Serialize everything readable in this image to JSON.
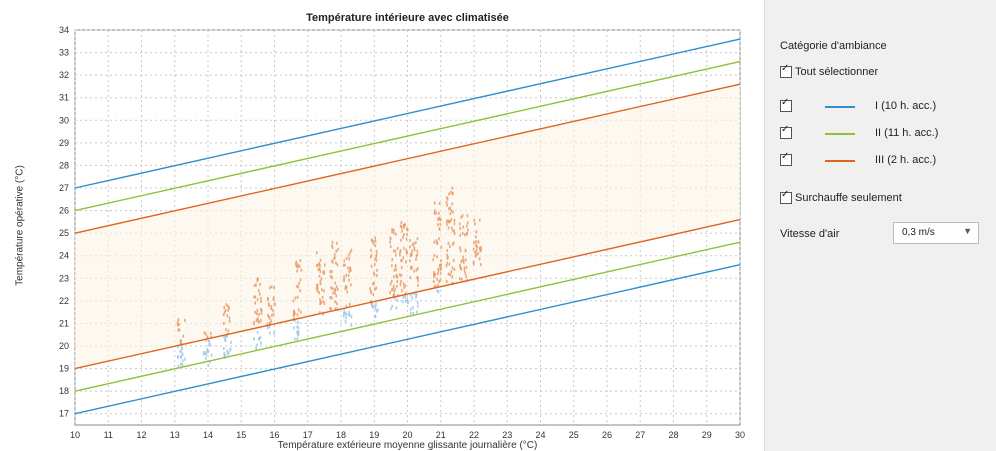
{
  "chart_data": {
    "type": "scatter",
    "title": "Température intérieure avec climatisée",
    "xlabel": "Température extérieure moyenne glissante journalière (°C)",
    "ylabel": "Température opérative (°C)",
    "xlim": [
      10,
      30
    ],
    "ylim": [
      16.5,
      34
    ],
    "x_ticks": [
      "10",
      "11",
      "12",
      "13",
      "14",
      "15",
      "16",
      "17",
      "18",
      "19",
      "20",
      "21",
      "22",
      "23",
      "24",
      "25",
      "26",
      "27",
      "28",
      "29",
      "30"
    ],
    "y_ticks": [
      "17",
      "18",
      "19",
      "20",
      "21",
      "22",
      "23",
      "24",
      "25",
      "26",
      "27",
      "28",
      "29",
      "30",
      "31",
      "32",
      "33",
      "34"
    ],
    "grid": true,
    "comfort_lines": [
      {
        "category": "I",
        "color": "#2e8fd0",
        "upper": [
          [
            10,
            27.0
          ],
          [
            30,
            33.6
          ]
        ],
        "lower": [
          [
            10,
            17.0
          ],
          [
            30,
            23.6
          ]
        ]
      },
      {
        "category": "II",
        "color": "#8ec23a",
        "upper": [
          [
            10,
            26.0
          ],
          [
            30,
            32.6
          ]
        ],
        "lower": [
          [
            10,
            18.0
          ],
          [
            30,
            24.6
          ]
        ]
      },
      {
        "category": "III",
        "color": "#e0651e",
        "upper": [
          [
            10,
            25.0
          ],
          [
            30,
            31.6
          ]
        ],
        "lower": [
          [
            10,
            19.0
          ],
          [
            30,
            25.6
          ]
        ]
      }
    ],
    "scatter_clusters": [
      {
        "x": 13.2,
        "y_min": 19.0,
        "y_max": 21.2
      },
      {
        "x": 14.0,
        "y_min": 19.1,
        "y_max": 20.6
      },
      {
        "x": 14.6,
        "y_min": 19.5,
        "y_max": 22.0
      },
      {
        "x": 15.5,
        "y_min": 19.8,
        "y_max": 23.0
      },
      {
        "x": 15.9,
        "y_min": 20.5,
        "y_max": 22.7
      },
      {
        "x": 16.7,
        "y_min": 20.3,
        "y_max": 23.8
      },
      {
        "x": 17.4,
        "y_min": 21.2,
        "y_max": 24.2
      },
      {
        "x": 17.8,
        "y_min": 21.6,
        "y_max": 24.6
      },
      {
        "x": 18.2,
        "y_min": 20.9,
        "y_max": 24.3
      },
      {
        "x": 19.0,
        "y_min": 21.3,
        "y_max": 24.9
      },
      {
        "x": 19.6,
        "y_min": 21.6,
        "y_max": 25.2
      },
      {
        "x": 19.9,
        "y_min": 21.9,
        "y_max": 25.6
      },
      {
        "x": 20.2,
        "y_min": 21.4,
        "y_max": 24.9
      },
      {
        "x": 20.9,
        "y_min": 22.4,
        "y_max": 26.6
      },
      {
        "x": 21.3,
        "y_min": 22.7,
        "y_max": 27.1
      },
      {
        "x": 21.7,
        "y_min": 22.9,
        "y_max": 25.9
      },
      {
        "x": 22.1,
        "y_min": 23.6,
        "y_max": 25.6
      }
    ]
  },
  "panel": {
    "title": "Catégorie d'ambiance",
    "select_all": "Tout sélectionner",
    "categories": [
      {
        "label": "I (10 h. acc.)",
        "color": "#2e8fd0"
      },
      {
        "label": "II (11 h. acc.)",
        "color": "#8ec23a"
      },
      {
        "label": "III (2 h. acc.)",
        "color": "#e0651e"
      }
    ],
    "overheat_only": "Surchauffe seulement",
    "air_speed_label": "Vitesse d'air",
    "air_speed_value": "0,3 m/s"
  }
}
